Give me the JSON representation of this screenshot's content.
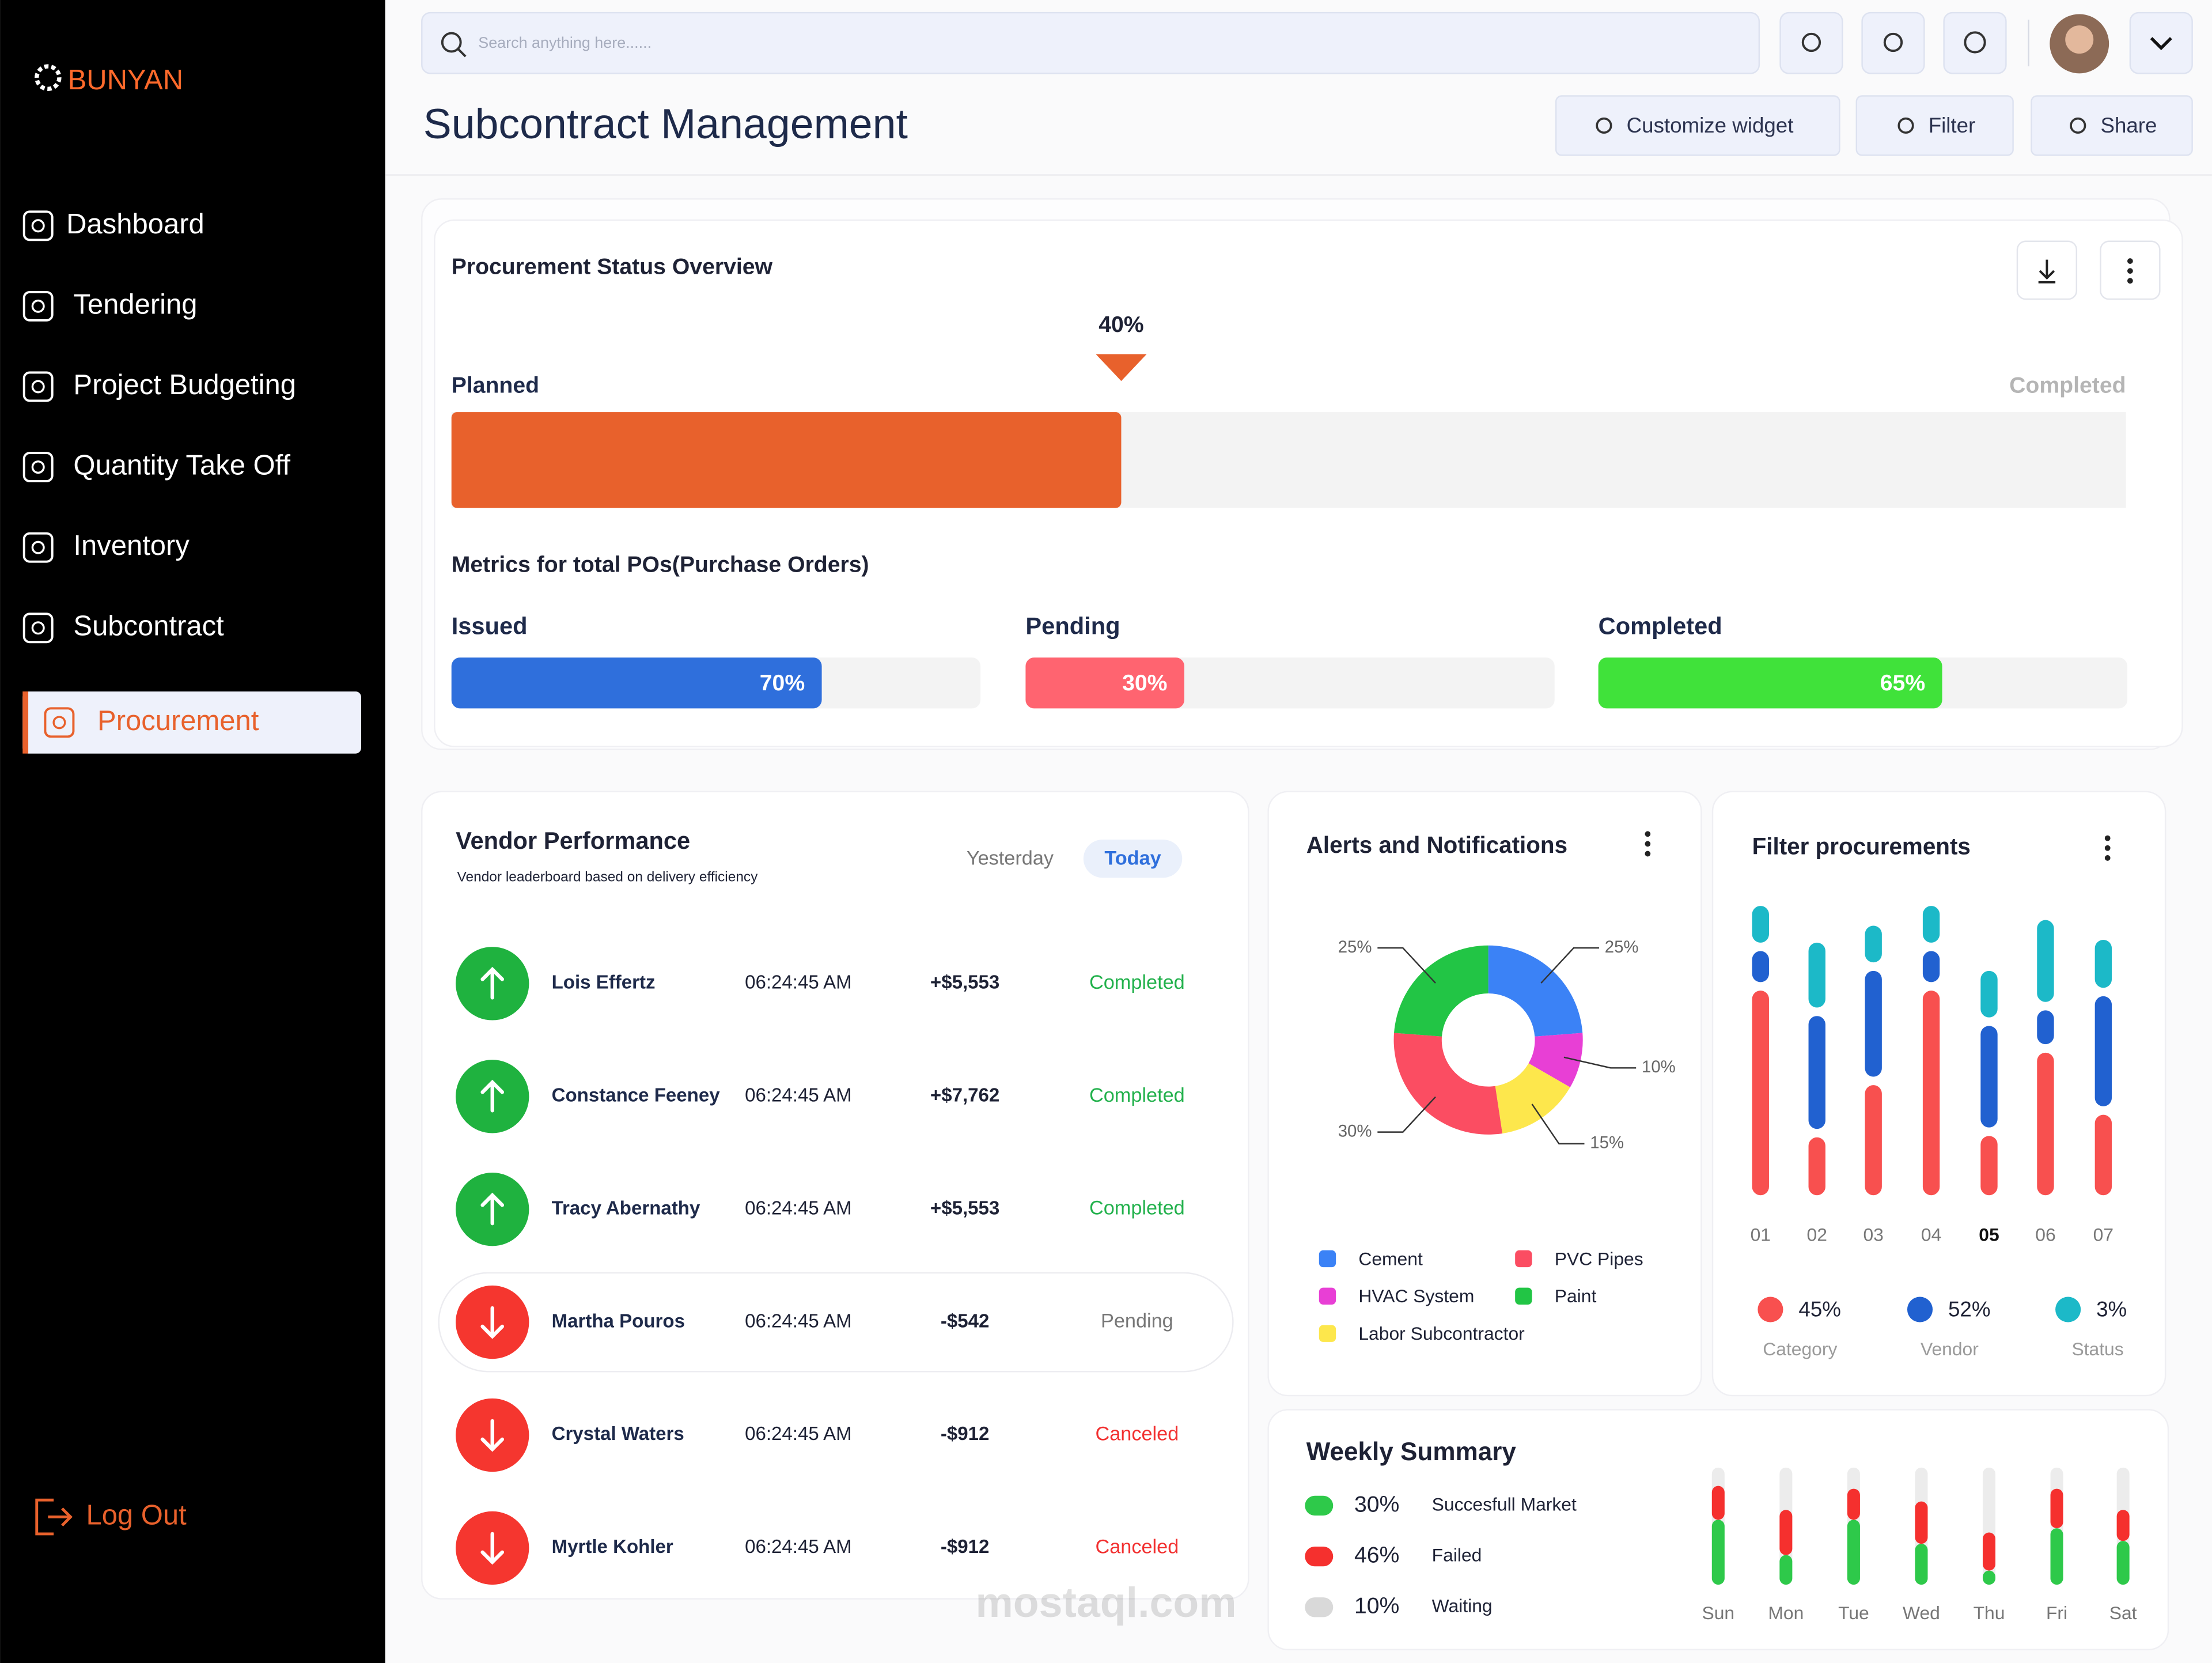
{
  "brand": "BUNYAN",
  "sidebar": {
    "nav": [
      "Dashboard",
      "Tendering",
      "Project Budgeting",
      "Quantity Take Off",
      "Inventory",
      "Subcontract",
      "Procurement"
    ],
    "active": 6,
    "logout": "Log Out"
  },
  "header": {
    "search_placeholder": "Search anything here......",
    "title": "Subcontract Management",
    "actions": [
      "Customize widget",
      "Filter",
      "Share"
    ]
  },
  "procurement_status": {
    "title": "Procurement Status Overview",
    "progress": {
      "value": 40,
      "label": "40%"
    },
    "start_label": "Planned",
    "end_label": "Completed",
    "metrics_title": "Metrics for total POs(Purchase Orders)",
    "metrics": [
      {
        "name": "Issued",
        "value": 70,
        "label": "70%",
        "color": "#2f6fdc"
      },
      {
        "name": "Pending",
        "value": 30,
        "label": "30%",
        "color": "#ff6470"
      },
      {
        "name": "Completed",
        "value": 65,
        "label": "65%",
        "color": "#40e23a"
      }
    ]
  },
  "vendor_performance": {
    "title": "Vendor Performance",
    "subtitle": "Vendor leaderboard based on delivery efficiency",
    "tabs": [
      "Yesterday",
      "Today"
    ],
    "active_tab": 1,
    "highlight_row": 3,
    "rows": [
      {
        "name": "Lois Effertz",
        "time": "06:24:45 AM",
        "amount": "+$5,553",
        "status": "Completed",
        "trend": "up"
      },
      {
        "name": "Constance Feeney",
        "time": "06:24:45 AM",
        "amount": "+$7,762",
        "status": "Completed",
        "trend": "up"
      },
      {
        "name": "Tracy Abernathy",
        "time": "06:24:45 AM",
        "amount": "+$5,553",
        "status": "Completed",
        "trend": "up"
      },
      {
        "name": "Martha Pouros",
        "time": "06:24:45 AM",
        "amount": "-$542",
        "status": "Pending",
        "trend": "down"
      },
      {
        "name": "Crystal Waters",
        "time": "06:24:45 AM",
        "amount": "-$912",
        "status": "Canceled",
        "trend": "down"
      },
      {
        "name": "Myrtle Kohler",
        "time": "06:24:45 AM",
        "amount": "-$912",
        "status": "Canceled",
        "trend": "down"
      }
    ]
  },
  "alerts": {
    "title": "Alerts and Notifications",
    "segments": [
      {
        "name": "Cement",
        "value": 25,
        "label": "25%",
        "color": "#3b82f6"
      },
      {
        "name": "HVAC System",
        "value": 10,
        "label": "10%",
        "color": "#e83fd5"
      },
      {
        "name": "Labor Subcontractor",
        "value": 15,
        "label": "15%",
        "color": "#fde74c"
      },
      {
        "name": "PVC Pipes",
        "value": 30,
        "label": "30%",
        "color": "#fb4d62"
      },
      {
        "name": "Paint",
        "value": 25,
        "label": "25%",
        "color": "#22c545"
      }
    ]
  },
  "filter_procurements": {
    "title": "Filter procurements",
    "categories": [
      "01",
      "02",
      "03",
      "04",
      "05",
      "06",
      "07"
    ],
    "highlight": 4,
    "series": [
      {
        "name": "Category",
        "share": "45%",
        "color": "#f8504f",
        "values": [
          145,
          41,
          78,
          145,
          42,
          101,
          57
        ]
      },
      {
        "name": "Vendor",
        "share": "52%",
        "color": "#2161d0",
        "values": [
          22,
          80,
          75,
          22,
          72,
          24,
          78
        ]
      },
      {
        "name": "Status",
        "share": "3%",
        "color": "#1cb9c8",
        "values": [
          26,
          46,
          26,
          26,
          33,
          58,
          34
        ]
      }
    ]
  },
  "weekly_summary": {
    "title": "Weekly Summary",
    "items": [
      {
        "name": "Succesfull Market",
        "share": "30%",
        "color": "#2ec94a"
      },
      {
        "name": "Failed",
        "share": "46%",
        "color": "#f5302e"
      },
      {
        "name": "Waiting",
        "share": "10%",
        "color": "#d9d9d9"
      }
    ],
    "days": [
      "Sun",
      "Mon",
      "Tue",
      "Wed",
      "Thu",
      "Fri",
      "Sat"
    ],
    "success": [
      46,
      21,
      46,
      29,
      10,
      40,
      31
    ],
    "failed": [
      24,
      32,
      22,
      30,
      27,
      28,
      22
    ]
  },
  "watermark": "mostaql.com"
}
